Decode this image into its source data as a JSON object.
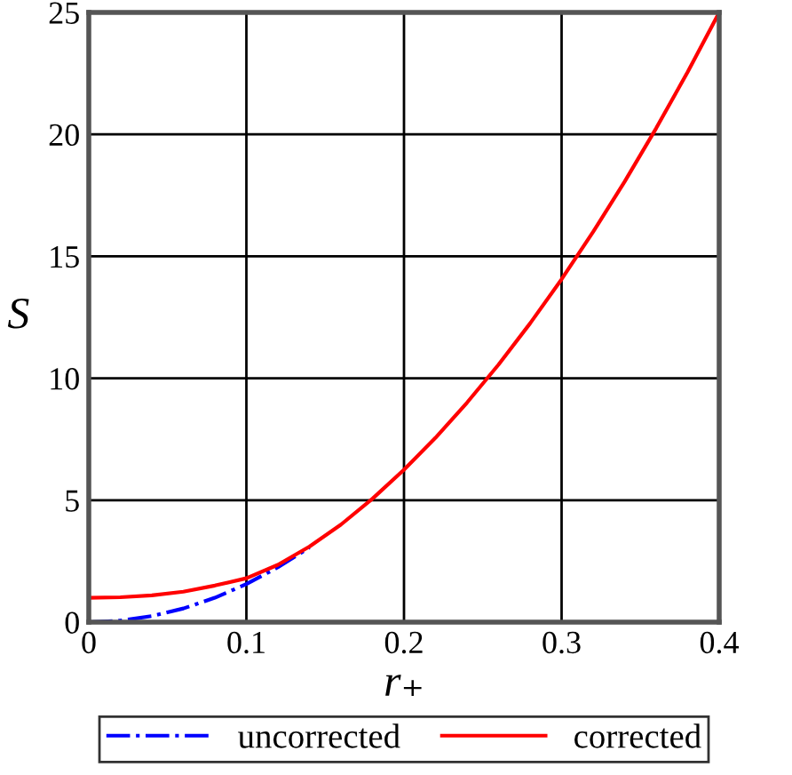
{
  "chart_data": {
    "type": "line",
    "xlabel": "r₊",
    "ylabel": "S",
    "x": [
      0,
      0.02,
      0.04,
      0.06,
      0.08,
      0.1,
      0.12,
      0.14,
      0.16,
      0.18,
      0.2,
      0.22,
      0.24,
      0.26,
      0.28,
      0.3,
      0.32,
      0.34,
      0.36,
      0.38,
      0.4
    ],
    "series": [
      {
        "name": "uncorrected",
        "color": "#0000ff",
        "line_style": "dashdot",
        "values": [
          0,
          0.06,
          0.25,
          0.56,
          1.0,
          1.56,
          2.25,
          3.06,
          null,
          null,
          null,
          null,
          null,
          null,
          null,
          null,
          null,
          null,
          null,
          null,
          null
        ]
      },
      {
        "name": "corrected",
        "color": "#ff0000",
        "line_style": "solid",
        "values": [
          1.0,
          1.02,
          1.1,
          1.25,
          1.5,
          1.8,
          2.35,
          3.1,
          4.0,
          5.06,
          6.25,
          7.56,
          9.0,
          10.56,
          12.25,
          14.06,
          16.0,
          18.06,
          20.25,
          22.56,
          25.0
        ]
      }
    ],
    "xlim": [
      0,
      0.4
    ],
    "ylim": [
      0,
      25
    ],
    "xticks": [
      0,
      0.1,
      0.2,
      0.3,
      0.4
    ],
    "yticks": [
      0,
      5,
      10,
      15,
      20,
      25
    ],
    "grid": true,
    "legend": "bottom",
    "marker": "none"
  }
}
